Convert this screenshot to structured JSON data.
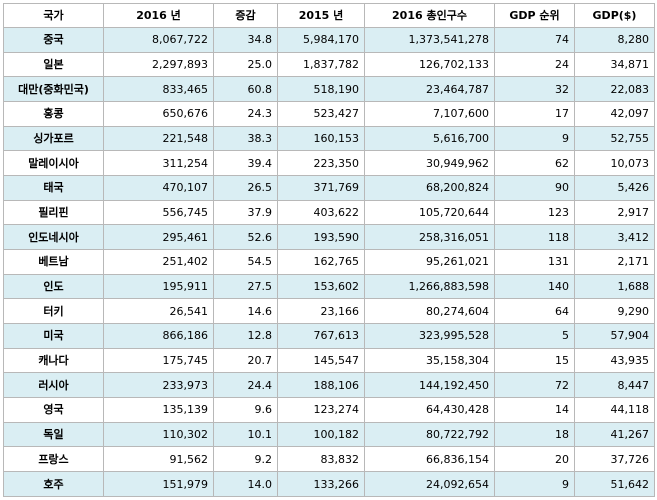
{
  "columns": [
    "국가",
    "2016 년",
    "증감",
    "2015 년",
    "2016  총인구수",
    "GDP 순위",
    "GDP($)"
  ],
  "rows": [
    {
      "country": "중국",
      "v2016": "8,067,722",
      "change": "34.8",
      "v2015": "5,984,170",
      "population": "1,373,541,278",
      "gdp_rank": "74",
      "gdp": "8,280",
      "shaded": true
    },
    {
      "country": "일본",
      "v2016": "2,297,893",
      "change": "25.0",
      "v2015": "1,837,782",
      "population": "126,702,133",
      "gdp_rank": "24",
      "gdp": "34,871",
      "shaded": false
    },
    {
      "country": "대만(중화민국)",
      "v2016": "833,465",
      "change": "60.8",
      "v2015": "518,190",
      "population": "23,464,787",
      "gdp_rank": "32",
      "gdp": "22,083",
      "shaded": true
    },
    {
      "country": "홍콩",
      "v2016": "650,676",
      "change": "24.3",
      "v2015": "523,427",
      "population": "7,107,600",
      "gdp_rank": "17",
      "gdp": "42,097",
      "shaded": false
    },
    {
      "country": "싱가포르",
      "v2016": "221,548",
      "change": "38.3",
      "v2015": "160,153",
      "population": "5,616,700",
      "gdp_rank": "9",
      "gdp": "52,755",
      "shaded": true
    },
    {
      "country": "말레이시아",
      "v2016": "311,254",
      "change": "39.4",
      "v2015": "223,350",
      "population": "30,949,962",
      "gdp_rank": "62",
      "gdp": "10,073",
      "shaded": false
    },
    {
      "country": "태국",
      "v2016": "470,107",
      "change": "26.5",
      "v2015": "371,769",
      "population": "68,200,824",
      "gdp_rank": "90",
      "gdp": "5,426",
      "shaded": true
    },
    {
      "country": "필리핀",
      "v2016": "556,745",
      "change": "37.9",
      "v2015": "403,622",
      "population": "105,720,644",
      "gdp_rank": "123",
      "gdp": "2,917",
      "shaded": false
    },
    {
      "country": "인도네시아",
      "v2016": "295,461",
      "change": "52.6",
      "v2015": "193,590",
      "population": "258,316,051",
      "gdp_rank": "118",
      "gdp": "3,412",
      "shaded": true
    },
    {
      "country": "베트남",
      "v2016": "251,402",
      "change": "54.5",
      "v2015": "162,765",
      "population": "95,261,021",
      "gdp_rank": "131",
      "gdp": "2,171",
      "shaded": false
    },
    {
      "country": "인도",
      "v2016": "195,911",
      "change": "27.5",
      "v2015": "153,602",
      "population": "1,266,883,598",
      "gdp_rank": "140",
      "gdp": "1,688",
      "shaded": true
    },
    {
      "country": "터키",
      "v2016": "26,541",
      "change": "14.6",
      "v2015": "23,166",
      "population": "80,274,604",
      "gdp_rank": "64",
      "gdp": "9,290",
      "shaded": false
    },
    {
      "country": "미국",
      "v2016": "866,186",
      "change": "12.8",
      "v2015": "767,613",
      "population": "323,995,528",
      "gdp_rank": "5",
      "gdp": "57,904",
      "shaded": true
    },
    {
      "country": "캐나다",
      "v2016": "175,745",
      "change": "20.7",
      "v2015": "145,547",
      "population": "35,158,304",
      "gdp_rank": "15",
      "gdp": "43,935",
      "shaded": false
    },
    {
      "country": "러시아",
      "v2016": "233,973",
      "change": "24.4",
      "v2015": "188,106",
      "population": "144,192,450",
      "gdp_rank": "72",
      "gdp": "8,447",
      "shaded": true
    },
    {
      "country": "영국",
      "v2016": "135,139",
      "change": "9.6",
      "v2015": "123,274",
      "population": "64,430,428",
      "gdp_rank": "14",
      "gdp": "44,118",
      "shaded": false
    },
    {
      "country": "독일",
      "v2016": "110,302",
      "change": "10.1",
      "v2015": "100,182",
      "population": "80,722,792",
      "gdp_rank": "18",
      "gdp": "41,267",
      "shaded": true
    },
    {
      "country": "프랑스",
      "v2016": "91,562",
      "change": "9.2",
      "v2015": "83,832",
      "population": "66,836,154",
      "gdp_rank": "20",
      "gdp": "37,726",
      "shaded": false
    },
    {
      "country": "호주",
      "v2016": "151,979",
      "change": "14.0",
      "v2015": "133,266",
      "population": "24,092,654",
      "gdp_rank": "9",
      "gdp": "51,642",
      "shaded": true
    }
  ],
  "colors": {
    "shaded_row": "#daeef3",
    "plain_row": "#ffffff",
    "border": "#b8b8b8"
  }
}
